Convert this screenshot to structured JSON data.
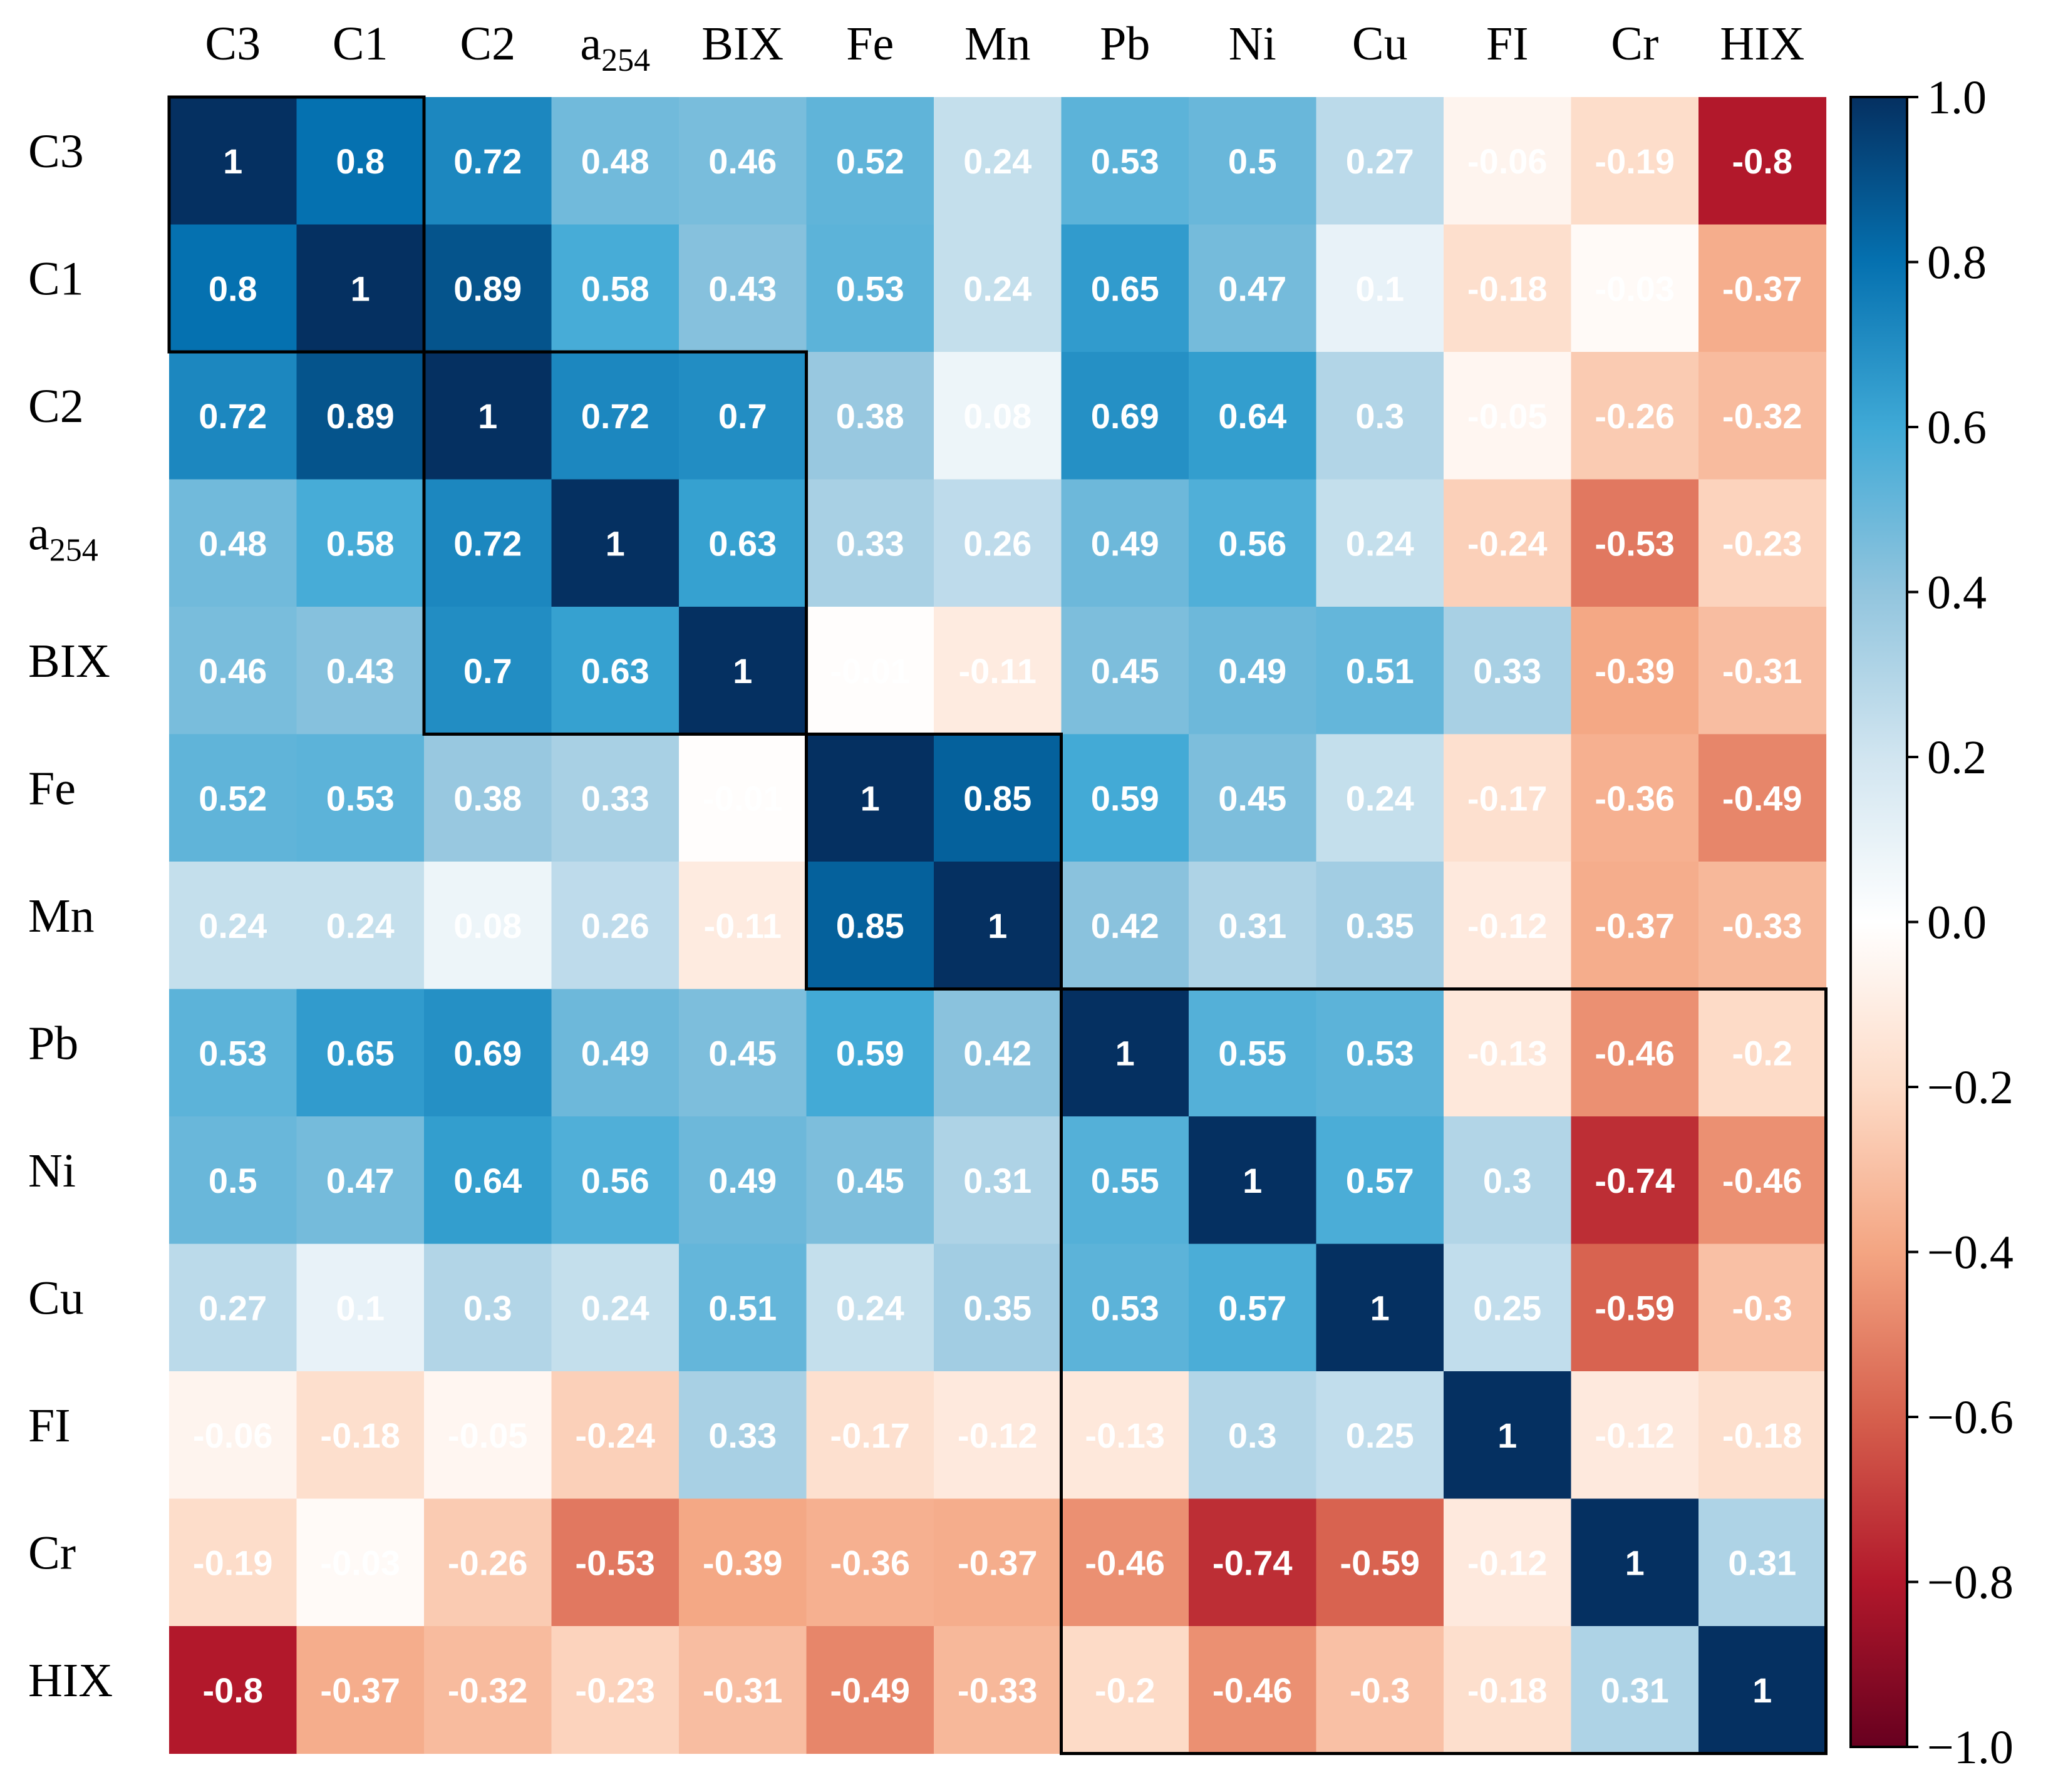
{
  "chart_data": {
    "type": "heatmap",
    "title": "",
    "variables": [
      "C3",
      "C1",
      "C2",
      "a254",
      "BIX",
      "Fe",
      "Mn",
      "Pb",
      "Ni",
      "Cu",
      "FI",
      "Cr",
      "HIX"
    ],
    "labels": [
      {
        "base": "C3",
        "sub": ""
      },
      {
        "base": "C1",
        "sub": ""
      },
      {
        "base": "C2",
        "sub": ""
      },
      {
        "base": "a",
        "sub": "254"
      },
      {
        "base": "BIX",
        "sub": ""
      },
      {
        "base": "Fe",
        "sub": ""
      },
      {
        "base": "Mn",
        "sub": ""
      },
      {
        "base": "Pb",
        "sub": ""
      },
      {
        "base": "Ni",
        "sub": ""
      },
      {
        "base": "Cu",
        "sub": ""
      },
      {
        "base": "FI",
        "sub": ""
      },
      {
        "base": "Cr",
        "sub": ""
      },
      {
        "base": "HIX",
        "sub": ""
      }
    ],
    "matrix": [
      [
        1,
        0.8,
        0.72,
        0.48,
        0.46,
        0.52,
        0.24,
        0.53,
        0.5,
        0.27,
        -0.06,
        -0.19,
        -0.8
      ],
      [
        0.8,
        1,
        0.89,
        0.58,
        0.43,
        0.53,
        0.24,
        0.65,
        0.47,
        0.1,
        -0.18,
        -0.03,
        -0.37
      ],
      [
        0.72,
        0.89,
        1,
        0.72,
        0.7,
        0.38,
        0.08,
        0.69,
        0.64,
        0.3,
        -0.05,
        -0.26,
        -0.32
      ],
      [
        0.48,
        0.58,
        0.72,
        1,
        0.63,
        0.33,
        0.26,
        0.49,
        0.56,
        0.24,
        -0.24,
        -0.53,
        -0.23
      ],
      [
        0.46,
        0.43,
        0.7,
        0.63,
        1,
        -0.01,
        -0.11,
        0.45,
        0.49,
        0.51,
        0.33,
        -0.39,
        -0.31
      ],
      [
        0.52,
        0.53,
        0.38,
        0.33,
        -0.01,
        1,
        0.85,
        0.59,
        0.45,
        0.24,
        -0.17,
        -0.36,
        -0.49
      ],
      [
        0.24,
        0.24,
        0.08,
        0.26,
        -0.11,
        0.85,
        1,
        0.42,
        0.31,
        0.35,
        -0.12,
        -0.37,
        -0.33
      ],
      [
        0.53,
        0.65,
        0.69,
        0.49,
        0.45,
        0.59,
        0.42,
        1,
        0.55,
        0.53,
        -0.13,
        -0.46,
        -0.2
      ],
      [
        0.5,
        0.47,
        0.64,
        0.56,
        0.49,
        0.45,
        0.31,
        0.55,
        1,
        0.57,
        0.3,
        -0.74,
        -0.46
      ],
      [
        0.27,
        0.1,
        0.3,
        0.24,
        0.51,
        0.24,
        0.35,
        0.53,
        0.57,
        1,
        0.25,
        -0.59,
        -0.3
      ],
      [
        -0.06,
        -0.18,
        -0.05,
        -0.24,
        0.33,
        -0.17,
        -0.12,
        -0.13,
        0.3,
        0.25,
        1,
        -0.12,
        -0.18
      ],
      [
        -0.19,
        -0.03,
        -0.26,
        -0.53,
        -0.39,
        -0.36,
        -0.37,
        -0.46,
        -0.74,
        -0.59,
        -0.12,
        1,
        0.31
      ],
      [
        -0.8,
        -0.37,
        -0.32,
        -0.23,
        -0.31,
        -0.49,
        -0.33,
        -0.2,
        -0.46,
        -0.3,
        -0.18,
        0.31,
        1
      ]
    ],
    "cluster_boxes": [
      {
        "start": 0,
        "end": 1
      },
      {
        "start": 2,
        "end": 4
      },
      {
        "start": 5,
        "end": 6
      },
      {
        "start": 7,
        "end": 12
      }
    ],
    "colorbar": {
      "range": [
        -1.0,
        1.0
      ],
      "tick_values": [
        1.0,
        0.8,
        0.6,
        0.4,
        0.2,
        0.0,
        -0.2,
        -0.4,
        -0.6,
        -0.8,
        -1.0
      ],
      "tick_labels": [
        "1.0",
        "0.8",
        "0.6",
        "0.4",
        "0.2",
        "0.0",
        "−0.2",
        "−0.4",
        "−0.6",
        "−0.8",
        "−1.0"
      ]
    },
    "colormap": {
      "name": "RdBu",
      "stops": [
        "#67001f",
        "#b2182b",
        "#d6604d",
        "#f4a582",
        "#fddbc7",
        "#ffffff",
        "#d1e5f0",
        "#92c5de",
        "#3fa9d6",
        "#0571b0",
        "#053061"
      ]
    }
  }
}
